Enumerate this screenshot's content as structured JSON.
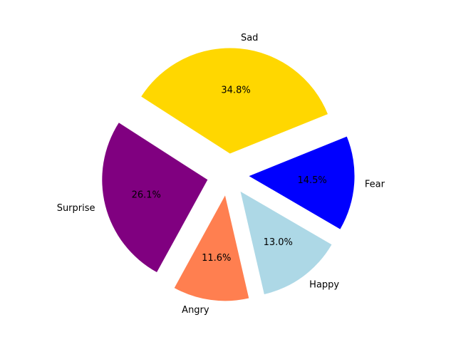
{
  "chart_data": {
    "type": "pie",
    "title": "",
    "slices": [
      {
        "label": "Sad",
        "percent": 34.8,
        "pct_text": "34.8%",
        "color": "#FFD700",
        "exploded": true
      },
      {
        "label": "Surprise",
        "percent": 26.1,
        "pct_text": "26.1%",
        "color": "#800080",
        "exploded": true
      },
      {
        "label": "Angry",
        "percent": 11.6,
        "pct_text": "11.6%",
        "color": "#FF7F50",
        "exploded": true
      },
      {
        "label": "Happy",
        "percent": 13.0,
        "pct_text": "13.0%",
        "color": "#ADD8E6",
        "exploded": true
      },
      {
        "label": "Fear",
        "percent": 14.5,
        "pct_text": "14.5%",
        "color": "#0000FF",
        "exploded": true
      }
    ]
  }
}
